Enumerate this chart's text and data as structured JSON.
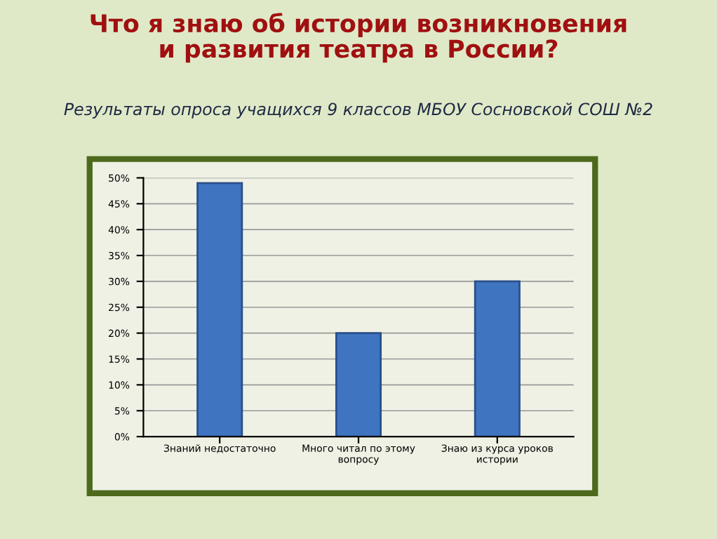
{
  "chart_data": {
    "type": "bar",
    "title": "Что я знаю об истории возникновения\nи развития театра в России?",
    "subtitle": "Результаты опроса учащихся 9 классов МБОУ Сосновской СОШ №2",
    "categories": [
      "Знаний недостаточно",
      "Много читал по этому\nвопросу",
      "Знаю из курса уроков\nистории"
    ],
    "values": [
      49,
      20,
      30
    ],
    "color": "#3f74c0",
    "ylim": [
      0,
      50
    ],
    "yticks": [
      {
        "value": 0,
        "label": "0%"
      },
      {
        "value": 5,
        "label": "5%"
      },
      {
        "value": 10,
        "label": "10%"
      },
      {
        "value": 15,
        "label": "15%"
      },
      {
        "value": 20,
        "label": "20%"
      },
      {
        "value": 25,
        "label": "25%"
      },
      {
        "value": 30,
        "label": "30%"
      },
      {
        "value": 35,
        "label": "35%"
      },
      {
        "value": 40,
        "label": "40%"
      },
      {
        "value": 45,
        "label": "45%"
      },
      {
        "value": 50,
        "label": "50%"
      }
    ],
    "grid": "y"
  }
}
